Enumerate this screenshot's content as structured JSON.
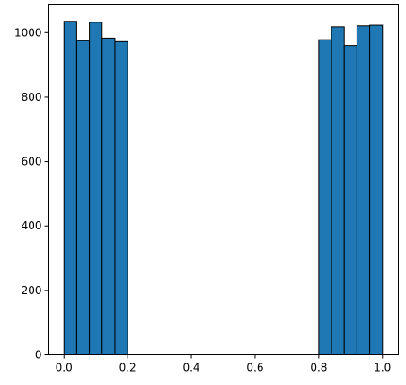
{
  "chart_data": {
    "type": "bar",
    "histogram": true,
    "bins": [
      {
        "x0": 0.0,
        "x1": 0.04,
        "value": 1035
      },
      {
        "x0": 0.04,
        "x1": 0.08,
        "value": 975
      },
      {
        "x0": 0.08,
        "x1": 0.12,
        "value": 1032
      },
      {
        "x0": 0.12,
        "x1": 0.16,
        "value": 983
      },
      {
        "x0": 0.16,
        "x1": 0.2,
        "value": 972
      },
      {
        "x0": 0.2,
        "x1": 0.24,
        "value": 0
      },
      {
        "x0": 0.24,
        "x1": 0.28,
        "value": 0
      },
      {
        "x0": 0.28,
        "x1": 0.32,
        "value": 0
      },
      {
        "x0": 0.32,
        "x1": 0.36,
        "value": 0
      },
      {
        "x0": 0.36,
        "x1": 0.4,
        "value": 0
      },
      {
        "x0": 0.4,
        "x1": 0.44,
        "value": 0
      },
      {
        "x0": 0.44,
        "x1": 0.48,
        "value": 0
      },
      {
        "x0": 0.48,
        "x1": 0.52,
        "value": 0
      },
      {
        "x0": 0.52,
        "x1": 0.56,
        "value": 0
      },
      {
        "x0": 0.56,
        "x1": 0.6,
        "value": 0
      },
      {
        "x0": 0.6,
        "x1": 0.64,
        "value": 0
      },
      {
        "x0": 0.64,
        "x1": 0.68,
        "value": 0
      },
      {
        "x0": 0.68,
        "x1": 0.72,
        "value": 0
      },
      {
        "x0": 0.72,
        "x1": 0.76,
        "value": 0
      },
      {
        "x0": 0.76,
        "x1": 0.8,
        "value": 0
      },
      {
        "x0": 0.8,
        "x1": 0.84,
        "value": 978
      },
      {
        "x0": 0.84,
        "x1": 0.88,
        "value": 1018
      },
      {
        "x0": 0.88,
        "x1": 0.92,
        "value": 960
      },
      {
        "x0": 0.92,
        "x1": 0.96,
        "value": 1021
      },
      {
        "x0": 0.96,
        "x1": 1.0,
        "value": 1023
      }
    ],
    "xlim": [
      -0.05,
      1.05
    ],
    "ylim": [
      0,
      1086
    ],
    "xticks": [
      0.0,
      0.2,
      0.4,
      0.6,
      0.8,
      1.0
    ],
    "xtick_labels": [
      "0.0",
      "0.2",
      "0.4",
      "0.6",
      "0.8",
      "1.0"
    ],
    "yticks": [
      0,
      200,
      400,
      600,
      800,
      1000
    ],
    "ytick_labels": [
      "0",
      "200",
      "400",
      "600",
      "800",
      "1000"
    ],
    "title": "",
    "xlabel": "",
    "ylabel": "",
    "grid": false,
    "legend": "none",
    "bar_color": "#1f77b4",
    "edge_color": "#000000"
  }
}
